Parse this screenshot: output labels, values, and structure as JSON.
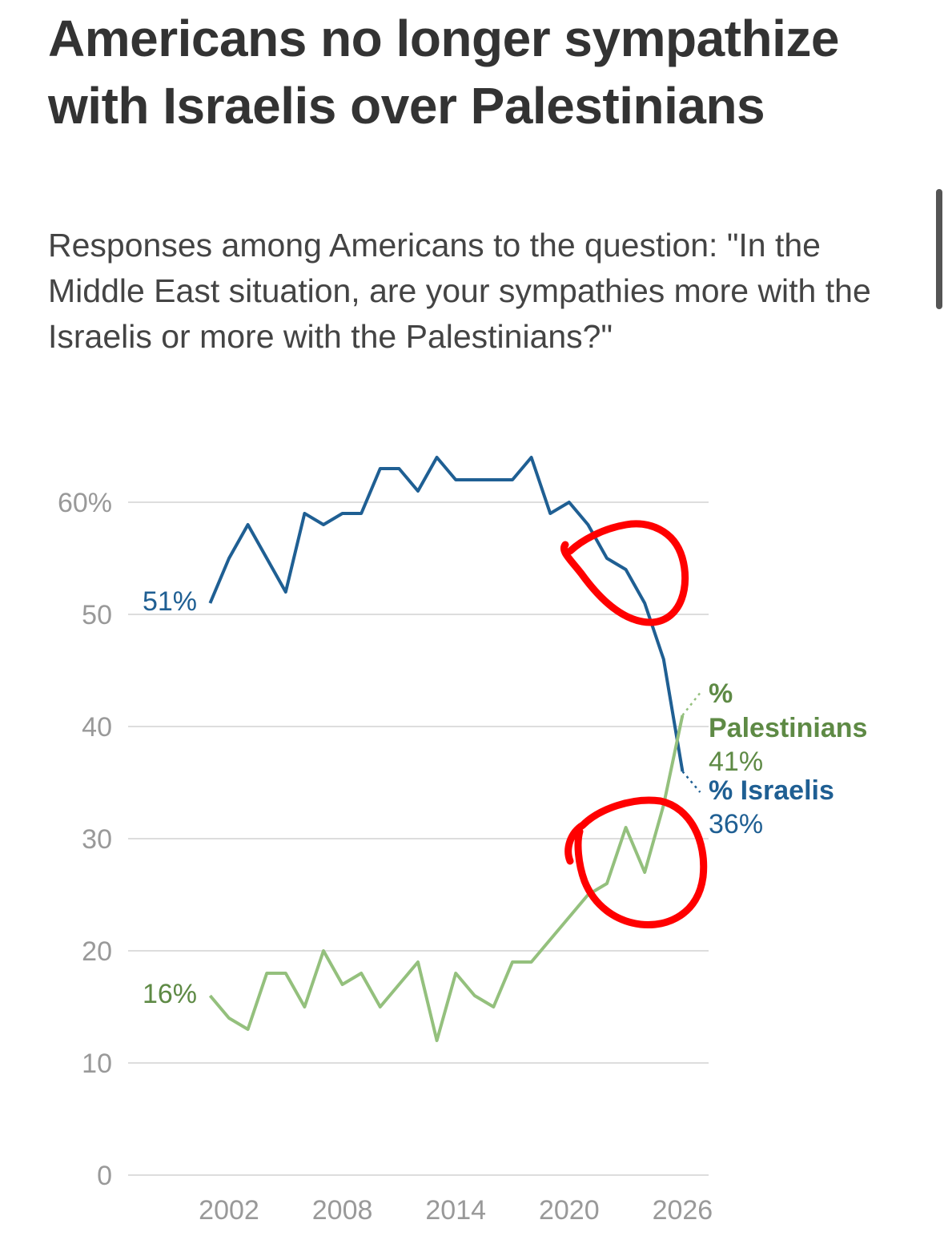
{
  "title": "Americans no longer sympathize with Israelis over Palestinians",
  "subtitle": "Responses among Americans to the question: \"In the Middle East situation, are your sympathies more with the Israelis or more with the Palestinians?\"",
  "colors": {
    "israelis": "#1f5f93",
    "palestinians": "#94c07d",
    "palestinians_label": "#5e8a45",
    "annotation": "#ff0000",
    "grid": "#dddddd"
  },
  "chart_data": {
    "type": "line",
    "ylim": [
      0,
      65
    ],
    "xlim": [
      1998,
      2028
    ],
    "y_ticks": [
      {
        "value": 0,
        "label": "0"
      },
      {
        "value": 10,
        "label": "10"
      },
      {
        "value": 20,
        "label": "20"
      },
      {
        "value": 30,
        "label": "30"
      },
      {
        "value": 40,
        "label": "40"
      },
      {
        "value": 50,
        "label": "50"
      },
      {
        "value": 60,
        "label": "60%"
      }
    ],
    "x_ticks": [
      {
        "value": 2002,
        "label": "2002"
      },
      {
        "value": 2008,
        "label": "2008"
      },
      {
        "value": 2014,
        "label": "2014"
      },
      {
        "value": 2020,
        "label": "2020"
      },
      {
        "value": 2026,
        "label": "2026"
      }
    ],
    "grid": true,
    "series": [
      {
        "key": "israelis",
        "label_line1": "% Israelis",
        "label_line2": "",
        "end_value_label": "36%",
        "start_value_label": "51%",
        "x": [
          2001,
          2002,
          2003,
          2004,
          2005,
          2006,
          2007,
          2008,
          2009,
          2010,
          2011,
          2012,
          2013,
          2014,
          2015,
          2016,
          2017,
          2018,
          2019,
          2020,
          2021,
          2022,
          2023,
          2024,
          2025,
          2026
        ],
        "values": [
          51,
          55,
          58,
          55,
          52,
          59,
          58,
          59,
          59,
          63,
          63,
          61,
          64,
          62,
          62,
          62,
          62,
          64,
          59,
          60,
          58,
          55,
          54,
          51,
          46,
          36
        ]
      },
      {
        "key": "palestinians",
        "label_line1": "%",
        "label_line2": "Palestinians",
        "end_value_label": "41%",
        "start_value_label": "16%",
        "x": [
          2001,
          2002,
          2003,
          2004,
          2005,
          2006,
          2007,
          2008,
          2009,
          2010,
          2011,
          2012,
          2013,
          2014,
          2015,
          2016,
          2017,
          2018,
          2019,
          2020,
          2021,
          2022,
          2023,
          2024,
          2025,
          2026
        ],
        "values": [
          16,
          14,
          13,
          18,
          18,
          15,
          20,
          17,
          18,
          15,
          17,
          19,
          12,
          18,
          16,
          15,
          19,
          19,
          21,
          23,
          25,
          26,
          31,
          27,
          33,
          41
        ]
      }
    ],
    "annotations": [
      {
        "type": "hand-drawn-circle",
        "around_x": 2023.5,
        "around_y": 53
      },
      {
        "type": "hand-drawn-circle",
        "around_x": 2023.5,
        "around_y": 28
      }
    ]
  }
}
